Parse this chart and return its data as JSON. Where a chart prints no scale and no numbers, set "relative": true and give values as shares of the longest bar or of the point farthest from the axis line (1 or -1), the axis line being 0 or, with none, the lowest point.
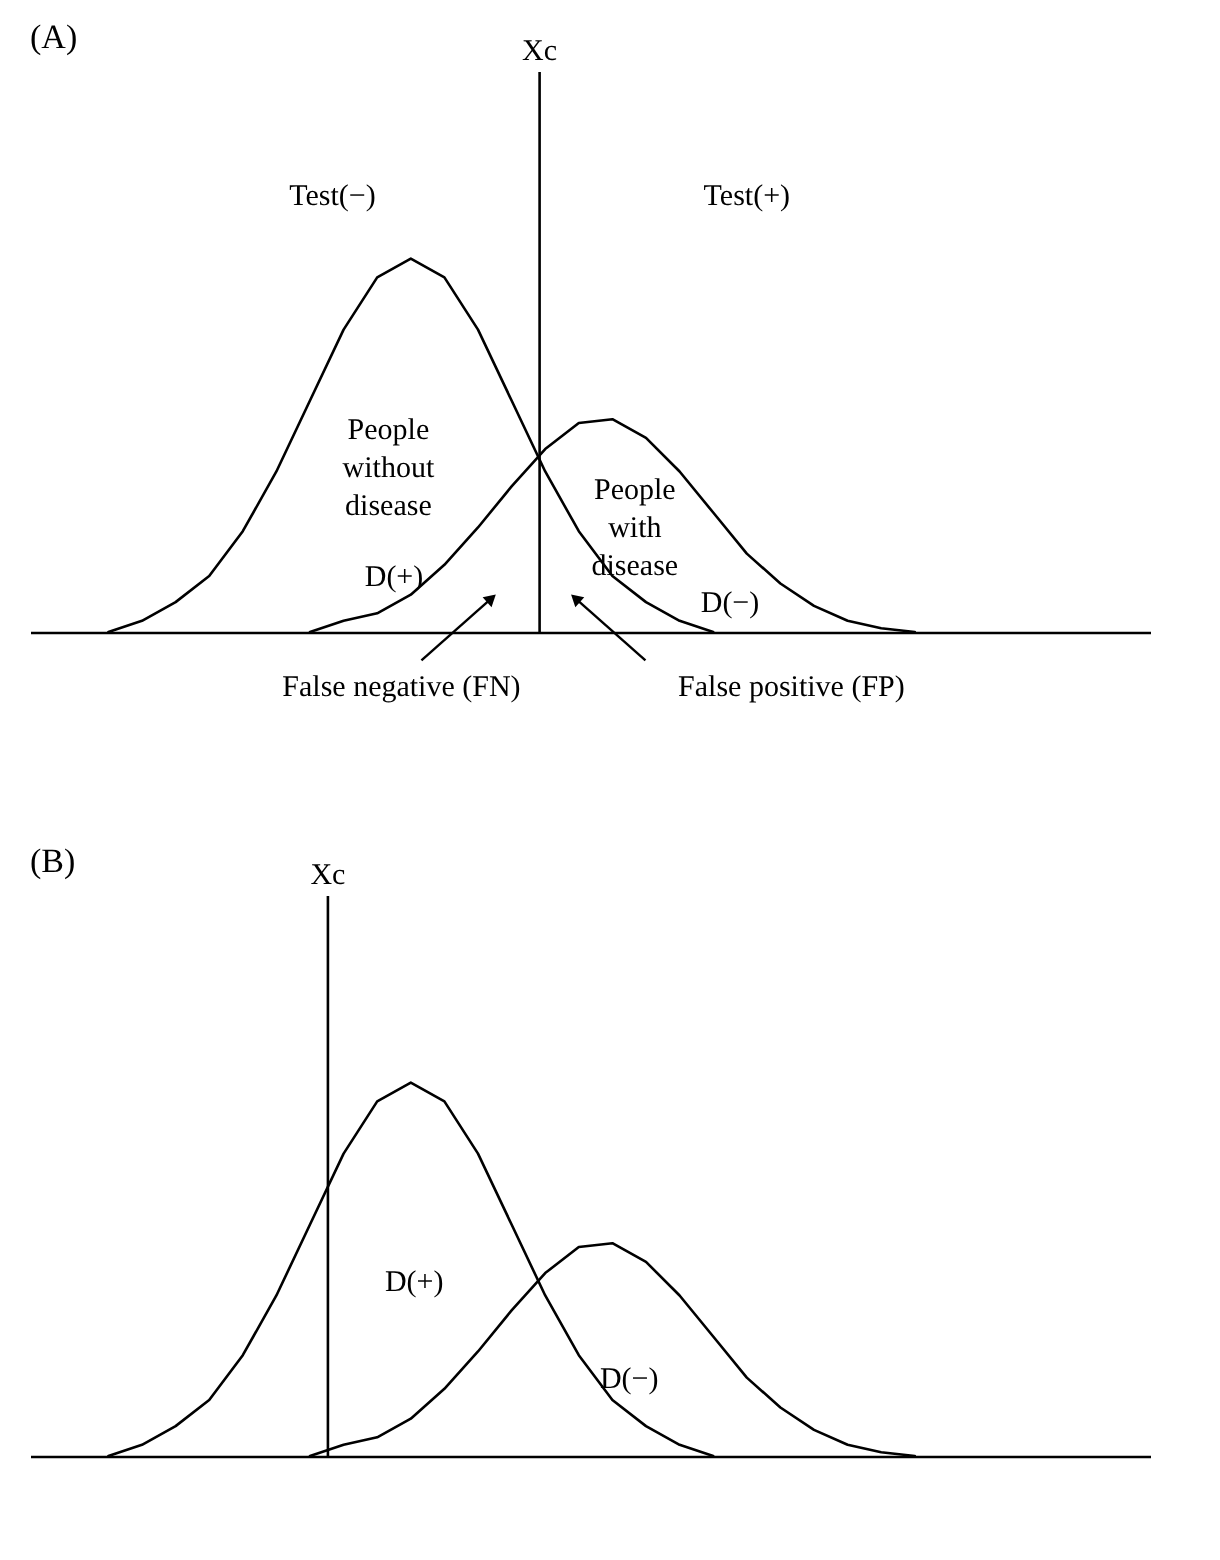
{
  "chart_data": [
    {
      "type": "line",
      "title": "(A)",
      "relative": true,
      "categories": [
        null,
        null,
        null,
        null,
        null,
        null,
        null,
        null,
        null,
        null,
        null,
        null,
        null,
        null,
        null,
        null,
        null,
        null,
        null,
        null,
        null,
        null,
        null,
        null,
        null
      ],
      "series": [
        {
          "color": "#000000",
          "values": [
            0,
            0.03,
            0.08,
            0.15,
            0.27,
            0.43,
            0.62,
            0.81,
            0.95,
            1,
            0.95,
            0.81,
            0.62,
            0.43,
            0.27,
            0.15,
            0.08,
            0.03,
            0,
            null,
            null,
            null,
            null,
            null,
            null
          ]
        },
        {
          "color": "#000000",
          "values": [
            null,
            null,
            null,
            null,
            null,
            null,
            0,
            0.03,
            0.05,
            0.1,
            0.18,
            0.28,
            0.39,
            0.49,
            0.56,
            0.57,
            0.52,
            0.43,
            0.32,
            0.21,
            0.13,
            0.07,
            0.03,
            0.01,
            0
          ]
        }
      ],
      "ref_lines": [
        {
          "axis": "x",
          "label": "Xc",
          "color": "#000000"
        }
      ],
      "annotations": [
        "Test(−)",
        "Test(+)",
        "People without disease",
        "D(+)",
        "People with disease",
        "D(−)",
        "False negative (FN)",
        "False positive (FP)"
      ]
    },
    {
      "type": "line",
      "title": "(B)",
      "relative": true,
      "categories": [
        null,
        null,
        null,
        null,
        null,
        null,
        null,
        null,
        null,
        null,
        null,
        null,
        null,
        null,
        null,
        null,
        null,
        null,
        null,
        null,
        null,
        null,
        null,
        null,
        null
      ],
      "series": [
        {
          "color": "#000000",
          "values": [
            0,
            0.03,
            0.08,
            0.15,
            0.27,
            0.43,
            0.62,
            0.81,
            0.95,
            1,
            0.95,
            0.81,
            0.62,
            0.43,
            0.27,
            0.15,
            0.08,
            0.03,
            0,
            null,
            null,
            null,
            null,
            null,
            null
          ]
        },
        {
          "color": "#000000",
          "values": [
            null,
            null,
            null,
            null,
            null,
            null,
            0,
            0.03,
            0.05,
            0.1,
            0.18,
            0.28,
            0.39,
            0.49,
            0.56,
            0.57,
            0.52,
            0.43,
            0.32,
            0.21,
            0.13,
            0.07,
            0.03,
            0.01,
            0
          ]
        }
      ],
      "ref_lines": [
        {
          "axis": "x",
          "label": "Xc",
          "color": "#000000"
        }
      ],
      "annotations": [
        "D(+)",
        "D(−)"
      ]
    }
  ]
}
